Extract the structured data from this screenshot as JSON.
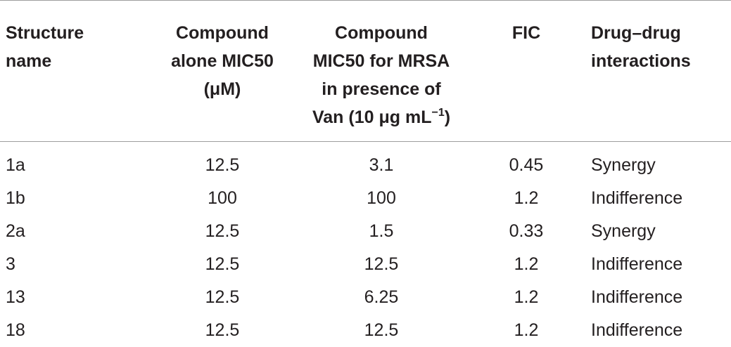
{
  "table": {
    "headers": [
      {
        "lines": [
          "Structure",
          "name"
        ]
      },
      {
        "lines": [
          "Compound",
          "alone MIC50",
          "(μM)"
        ]
      },
      {
        "lines": [
          "Compound",
          "MIC50 for MRSA",
          "in presence of",
          "Van (10 μg mL"
        ],
        "sup": "−1",
        "after_sup": ")"
      },
      {
        "lines": [
          "FIC"
        ]
      },
      {
        "lines": [
          "Drug–drug",
          "interactions"
        ]
      }
    ],
    "rows": [
      [
        "1a",
        "12.5",
        "3.1",
        "0.45",
        "Synergy"
      ],
      [
        "1b",
        "100",
        "100",
        "1.2",
        "Indifference"
      ],
      [
        "2a",
        "12.5",
        "1.5",
        "0.33",
        "Synergy"
      ],
      [
        "3",
        "12.5",
        "12.5",
        "1.2",
        "Indifference"
      ],
      [
        "13",
        "12.5",
        "6.25",
        "1.2",
        "Indifference"
      ],
      [
        "18",
        "12.5",
        "12.5",
        "1.2",
        "Indifference"
      ]
    ]
  }
}
